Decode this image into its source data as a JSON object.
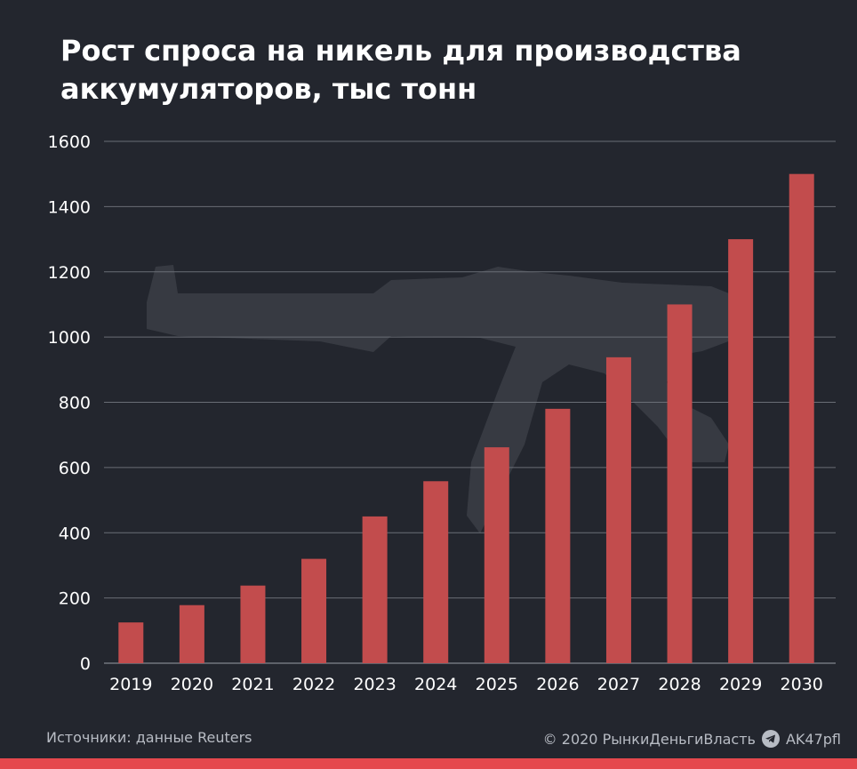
{
  "title": "Рост спроса на никель для производства аккумуляторов, тыс тонн",
  "footer": {
    "source": "Источники: данные Reuters",
    "copyright": "© 2020  РынкиДеньгиВласть",
    "channel": "AK47pfl",
    "channel_icon": "telegram-icon"
  },
  "colors": {
    "background": "#23262e",
    "bar": "#c24c4d",
    "grid": "#6a6e76",
    "accent_bar": "#e5484d"
  },
  "chart_data": {
    "type": "bar",
    "title": "Рост спроса на никель для производства аккумуляторов, тыс тонн",
    "xlabel": "",
    "ylabel": "",
    "categories": [
      "2019",
      "2020",
      "2021",
      "2022",
      "2023",
      "2024",
      "2025",
      "2026",
      "2027",
      "2028",
      "2029",
      "2030"
    ],
    "values": [
      125,
      178,
      238,
      320,
      450,
      558,
      662,
      780,
      938,
      1100,
      1300,
      1500
    ],
    "ylim": [
      0,
      1600
    ],
    "yticks": [
      0,
      200,
      400,
      600,
      800,
      1000,
      1200,
      1400,
      1600
    ],
    "grid": true
  }
}
